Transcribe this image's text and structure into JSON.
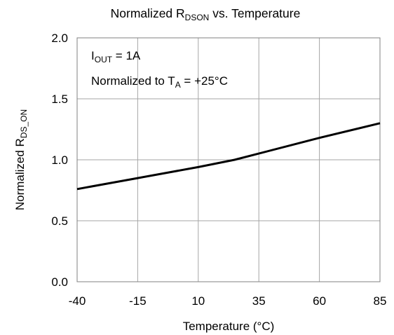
{
  "chart_data": {
    "type": "line",
    "title": {
      "main": "Normalized R",
      "sub": "DSON",
      "rest": " vs. Temperature"
    },
    "xlabel": "Temperature (°C)",
    "ylabel": {
      "main": "Normalized R",
      "sub": "DS_ON"
    },
    "xlim": [
      -40,
      85
    ],
    "ylim": [
      0.0,
      2.0
    ],
    "x_ticks": [
      "-40",
      "-15",
      "10",
      "35",
      "60",
      "85"
    ],
    "y_ticks": [
      "0.0",
      "0.5",
      "1.0",
      "1.5",
      "2.0"
    ],
    "grid": true,
    "annotations": [
      {
        "main": "I",
        "sub": "OUT",
        "rest": " = 1A"
      },
      {
        "main": "Normalized to T",
        "sub": "A",
        "rest": " = +25°C"
      }
    ],
    "series": [
      {
        "color": "#000000",
        "x": [
          -40,
          -15,
          10,
          25,
          60,
          85
        ],
        "y": [
          0.76,
          0.85,
          0.94,
          1.0,
          1.18,
          1.3
        ]
      }
    ]
  }
}
